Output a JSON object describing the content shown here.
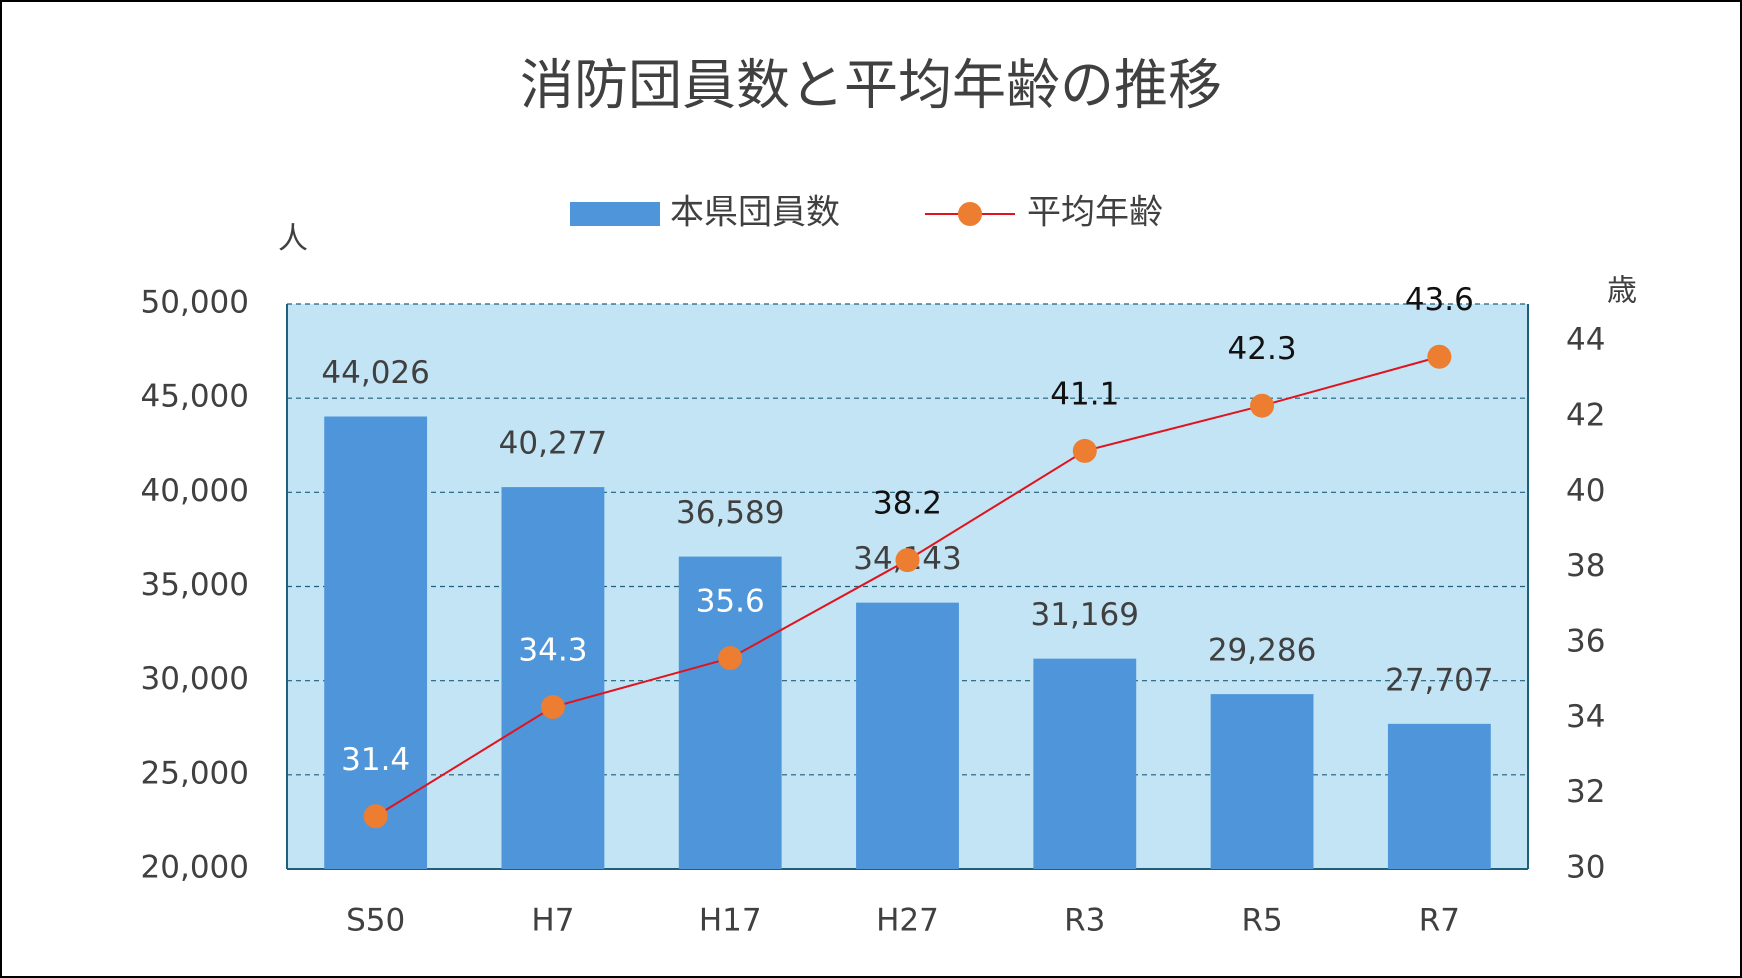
{
  "chart_data": {
    "type": "bar",
    "title": "消防団員数と平均年齢の推移",
    "y_label": "人",
    "y2_label": "歳",
    "categories": [
      "S50",
      "H7",
      "H17",
      "H27",
      "R3",
      "R5",
      "R7"
    ],
    "series": [
      {
        "name": "本県団員数",
        "type": "bar",
        "color": "#4f95da",
        "values": [
          44026,
          40277,
          36589,
          34143,
          31169,
          29286,
          27707
        ],
        "value_labels": [
          "44,026",
          "40,277",
          "36,589",
          "34,143",
          "31,169",
          "29,286",
          "27,707"
        ]
      },
      {
        "name": "平均年齢",
        "type": "line",
        "axis": "y2",
        "color": "#e0141e",
        "marker_color": "#ed7d31",
        "values": [
          31.4,
          34.3,
          35.6,
          38.2,
          41.1,
          42.3,
          43.6
        ]
      }
    ],
    "ylim": [
      20000,
      50000
    ],
    "yticks": [
      {
        "value": 20000,
        "label": "20,000"
      },
      {
        "value": 25000,
        "label": "25,000"
      },
      {
        "value": 30000,
        "label": "30,000"
      },
      {
        "value": 35000,
        "label": "35,000"
      },
      {
        "value": 40000,
        "label": "40,000"
      },
      {
        "value": 45000,
        "label": "45,000"
      },
      {
        "value": 50000,
        "label": "50,000"
      }
    ],
    "y2lim": [
      30,
      45
    ],
    "y2ticks": [
      30,
      32,
      34,
      36,
      38,
      40,
      42,
      44
    ],
    "grid": true,
    "legend": "top",
    "plot_background": "#c3e4f4"
  }
}
